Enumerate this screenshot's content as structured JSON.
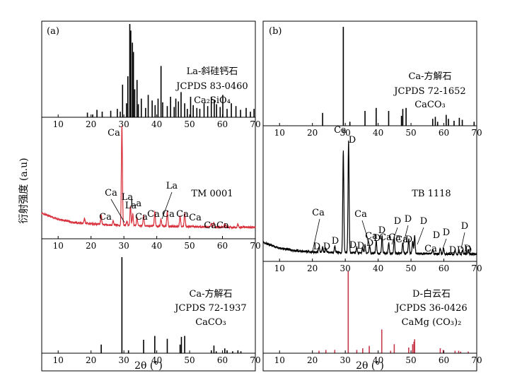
{
  "y_axis_label": "衍射强度 (a.u)",
  "x_axis_label": "2θ (°)",
  "chart_data": [
    {
      "type": "bar",
      "panel": "(a)",
      "id": "a-top",
      "title_lines": [
        "La-斜硅钙石",
        "JCPDS 83-0460",
        "Ca₂SiO₄"
      ],
      "xlim": [
        5,
        70
      ],
      "xticks": [
        10,
        20,
        30,
        40,
        50,
        60,
        70
      ],
      "ylim": [
        0,
        100
      ],
      "x": [
        18.9,
        20.5,
        21.8,
        23.4,
        26.0,
        28.0,
        28.9,
        29.6,
        30.8,
        31.2,
        31.8,
        32.1,
        32.6,
        32.9,
        33.3,
        34.0,
        34.4,
        35.3,
        36.6,
        37.4,
        38.6,
        39.5,
        40.4,
        41.3,
        41.8,
        43.2,
        44.2,
        45.3,
        45.8,
        46.6,
        47.4,
        48.5,
        49.3,
        50.3,
        51.1,
        52.2,
        53.1,
        54.4,
        55.5,
        56.6,
        57.5,
        58.2,
        59.3,
        60.1,
        61.4,
        62.7,
        64.1,
        65.5,
        67.2,
        68.5,
        69.6
      ],
      "values": [
        5,
        3,
        8,
        6,
        7,
        9,
        6,
        35,
        15,
        44,
        100,
        93,
        80,
        70,
        30,
        40,
        14,
        20,
        10,
        24,
        18,
        13,
        20,
        55,
        16,
        12,
        22,
        11,
        20,
        17,
        27,
        15,
        9,
        22,
        13,
        10,
        9,
        15,
        12,
        22,
        18,
        14,
        11,
        24,
        9,
        15,
        12,
        8,
        10,
        6,
        9
      ]
    },
    {
      "type": "line",
      "panel": "(a)",
      "id": "a-mid",
      "sample": "TM 0001",
      "xlim": [
        5,
        70
      ],
      "xticks": [
        10,
        20,
        30,
        40,
        50,
        60,
        70
      ],
      "baseline": [
        [
          5,
          22
        ],
        [
          10,
          17
        ],
        [
          15,
          14
        ],
        [
          20,
          13
        ],
        [
          25,
          12
        ],
        [
          30,
          11.5
        ],
        [
          40,
          11
        ],
        [
          50,
          10.5
        ],
        [
          60,
          10
        ],
        [
          70,
          10
        ]
      ],
      "peaks": [
        {
          "x": 18.0,
          "h": 4,
          "label": ""
        },
        {
          "x": 23.1,
          "h": 8,
          "label": "Ca"
        },
        {
          "x": 26.7,
          "h": 4,
          "label": ""
        },
        {
          "x": 29.4,
          "h": 86,
          "label": "Ca"
        },
        {
          "x": 30.9,
          "h": 4,
          "label": "Ca"
        },
        {
          "x": 32.0,
          "h": 17,
          "label": "La"
        },
        {
          "x": 32.7,
          "h": 10,
          "label": "La"
        },
        {
          "x": 34.0,
          "h": 7,
          "label": "La"
        },
        {
          "x": 36.0,
          "h": 9,
          "label": "Ca"
        },
        {
          "x": 39.4,
          "h": 12,
          "label": "Ca"
        },
        {
          "x": 41.3,
          "h": 6,
          "label": "La"
        },
        {
          "x": 43.2,
          "h": 13,
          "label": "Ca"
        },
        {
          "x": 47.1,
          "h": 9,
          "label": "Ca"
        },
        {
          "x": 48.5,
          "h": 12,
          "label": ""
        },
        {
          "x": 56.6,
          "h": 3,
          "label": "Ca"
        },
        {
          "x": 57.4,
          "h": 4,
          "label": "Ca"
        },
        {
          "x": 60.7,
          "h": 3,
          "label": ""
        },
        {
          "x": 64.7,
          "h": 3,
          "label": ""
        }
      ],
      "annotations": [
        "Ca",
        "Ca",
        "La",
        "La",
        "La",
        "Ca",
        "Ca",
        "Ca",
        "Ca",
        "La",
        "Ca",
        "CaCa"
      ]
    },
    {
      "type": "bar",
      "panel": "(a)",
      "id": "a-bot",
      "title_lines": [
        "Ca-方解石",
        "JCPDS 72-1937",
        "CaCO₃"
      ],
      "xlim": [
        5,
        70
      ],
      "xticks": [
        10,
        20,
        30,
        40,
        50,
        60,
        70
      ],
      "ylim": [
        0,
        100
      ],
      "x": [
        23.1,
        29.4,
        31.4,
        36.0,
        39.4,
        43.2,
        47.1,
        47.5,
        48.5,
        56.6,
        57.4,
        58.1,
        60.7,
        61.4,
        63.1,
        64.7,
        65.6
      ],
      "values": [
        9,
        100,
        3,
        14,
        18,
        15,
        9,
        17,
        18,
        3,
        8,
        2,
        5,
        3,
        2,
        3,
        2
      ]
    },
    {
      "type": "bar",
      "panel": "(b)",
      "id": "b-top",
      "title_lines": [
        "Ca-方解石",
        "JCPDS 72-1652",
        "CaCO₃"
      ],
      "xlim": [
        5,
        70
      ],
      "xticks": [
        10,
        20,
        30,
        40,
        50,
        60,
        70
      ],
      "ylim": [
        0,
        100
      ],
      "x": [
        23.1,
        29.4,
        31.4,
        36.0,
        39.4,
        43.2,
        47.1,
        47.5,
        48.5,
        56.6,
        57.4,
        58.1,
        60.7,
        61.4,
        63.1,
        64.7,
        65.6,
        69.2
      ],
      "values": [
        13,
        100,
        4,
        15,
        18,
        15,
        10,
        17,
        18,
        7,
        9,
        4,
        11,
        7,
        5,
        8,
        6,
        4
      ]
    },
    {
      "type": "line",
      "panel": "(b)",
      "id": "b-mid",
      "sample": "TB 1118",
      "xlim": [
        5,
        70
      ],
      "xticks": [
        10,
        20,
        30,
        40,
        50,
        60,
        70
      ],
      "baseline": [
        [
          5,
          14
        ],
        [
          10,
          10
        ],
        [
          15,
          8
        ],
        [
          20,
          7
        ],
        [
          30,
          6.5
        ],
        [
          40,
          6
        ],
        [
          50,
          6
        ],
        [
          60,
          5.5
        ],
        [
          70,
          5.5
        ]
      ],
      "peaks": [
        {
          "x": 22.0,
          "h": 4,
          "label": "D"
        },
        {
          "x": 23.1,
          "h": 4,
          "label": "Ca"
        },
        {
          "x": 24.1,
          "h": 3,
          "label": "D"
        },
        {
          "x": 26.8,
          "h": 5,
          "label": "D"
        },
        {
          "x": 29.4,
          "h": 76,
          "label": "Ca"
        },
        {
          "x": 31.0,
          "h": 84,
          "label": "D"
        },
        {
          "x": 33.5,
          "h": 4,
          "label": "D"
        },
        {
          "x": 35.3,
          "h": 4,
          "label": "D"
        },
        {
          "x": 36.0,
          "h": 6,
          "label": "Ca"
        },
        {
          "x": 37.4,
          "h": 6,
          "label": "D"
        },
        {
          "x": 39.4,
          "h": 9,
          "label": "Ca"
        },
        {
          "x": 41.2,
          "h": 13,
          "label": "D"
        },
        {
          "x": 43.2,
          "h": 8,
          "label": "Ca"
        },
        {
          "x": 44.9,
          "h": 12,
          "label": "D"
        },
        {
          "x": 47.5,
          "h": 8,
          "label": "Ca"
        },
        {
          "x": 49.3,
          "h": 11,
          "label": "D"
        },
        {
          "x": 50.5,
          "h": 9,
          "label": "D"
        },
        {
          "x": 51.1,
          "h": 13,
          "label": "D"
        },
        {
          "x": 56.6,
          "h": 3,
          "label": "Ca"
        },
        {
          "x": 58.9,
          "h": 4,
          "label": "D"
        },
        {
          "x": 59.9,
          "h": 4,
          "label": "D"
        },
        {
          "x": 63.4,
          "h": 3,
          "label": "D"
        },
        {
          "x": 64.6,
          "h": 3,
          "label": "D"
        },
        {
          "x": 65.7,
          "h": 3,
          "label": "D"
        },
        {
          "x": 67.4,
          "h": 3,
          "label": "D"
        }
      ],
      "annotations": [
        "Ca",
        "D",
        "Ca",
        "D",
        "D",
        "D",
        "D",
        "D",
        "D",
        "Ca",
        "D",
        "Ca",
        "Ca",
        "Ca",
        "D",
        "D",
        "D",
        "D",
        "D",
        "Ca",
        "D",
        "D",
        "D",
        "D",
        "D",
        "D"
      ]
    },
    {
      "type": "bar",
      "panel": "(b)",
      "id": "b-bot",
      "title_lines": [
        "D-白云石",
        "JCPDS 36-0426",
        "CaMg (CO₃)₂"
      ],
      "xlim": [
        5,
        70
      ],
      "xticks": [
        10,
        20,
        30,
        40,
        50,
        60,
        70
      ],
      "ylim": [
        0,
        100
      ],
      "x": [
        22.0,
        24.1,
        26.8,
        30.9,
        33.5,
        35.3,
        37.3,
        41.1,
        43.8,
        44.9,
        49.3,
        50.5,
        50.9,
        51.1,
        58.9,
        59.8,
        63.4,
        64.5,
        65.1,
        67.4
      ],
      "values": [
        3,
        4,
        4,
        100,
        4,
        6,
        9,
        29,
        3,
        11,
        7,
        11,
        14,
        17,
        6,
        4,
        3,
        3,
        2,
        2
      ]
    }
  ]
}
